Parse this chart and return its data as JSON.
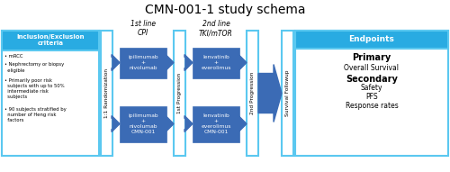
{
  "title": "CMN-001-1 study schema",
  "title_fontsize": 10,
  "bg_color": "#ffffff",
  "cyan_color": "#29ABE2",
  "blue_box_color": "#3B6BB5",
  "light_blue_border": "#5BC8F0",
  "arrow_color": "#3B6BB5",
  "inclusion_header": "Inclusion/Exclusion\ncriteria",
  "line1_header": "1st line\nCPI",
  "line2_header": "2nd line\nTKI/mTOR",
  "prog1_label": "1st Progression",
  "prog2_label": "2nd Progression",
  "rand_label": "1:1 Randomization",
  "followup_label": "Survival Followup",
  "arm1_line1": "ipilimumab\n+\nnivolumab",
  "arm2_line1": "ipilimumab\n+\nnivolumab\nCMN-001",
  "arm1_line2": "lenvatinib\n+\neverolimus",
  "arm2_line2": "lenvatinib\n+\neverolimus\nCMN-001",
  "endpoints_header": "Endpoints",
  "primary_label": "Primary",
  "primary_sub": "Overall Survival",
  "secondary_label": "Secondary",
  "secondary_items": [
    "Safety",
    "PFS",
    "Response rates"
  ],
  "bullet_texts": [
    "• mRCC",
    "• Nephrectomy or biopsy\n  eligible",
    "• Primarily poor risk\n  subjects with up to 50%\n  intermediate risk\n  subjects",
    "• 90 subjects stratified by\n  number of Heng risk\n  factors"
  ]
}
